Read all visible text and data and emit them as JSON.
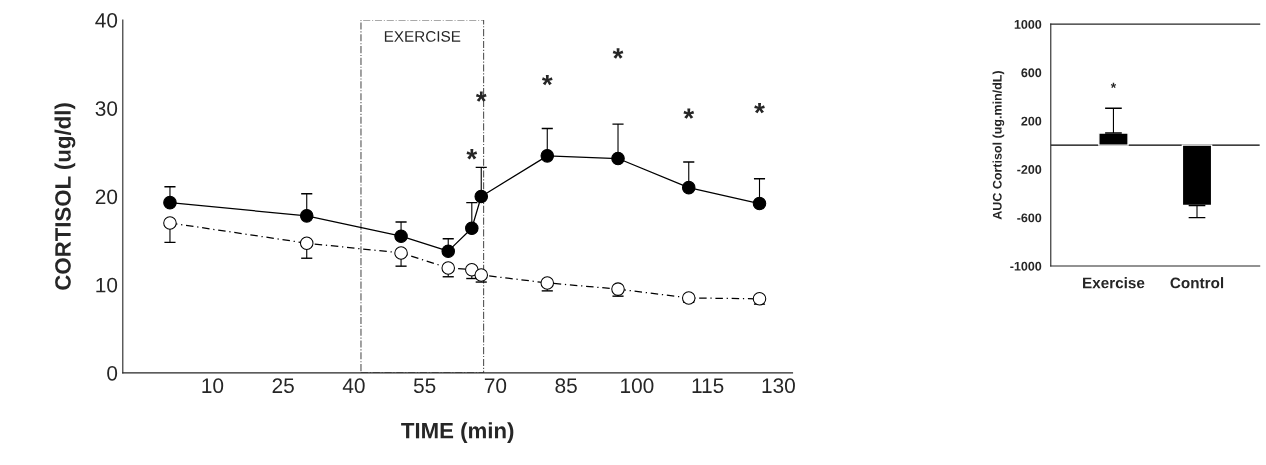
{
  "chart_data": [
    {
      "type": "line",
      "xlabel": "TIME (min)",
      "ylabel": "CORTISOL (ug/dl)",
      "xlim": [
        -9,
        133
      ],
      "ylim": [
        0,
        40
      ],
      "xticks": [
        10,
        25,
        40,
        55,
        70,
        85,
        100,
        115,
        130
      ],
      "yticks": [
        0,
        10,
        20,
        30,
        40
      ],
      "grid": false,
      "marker": "circle",
      "series": [
        {
          "color": "#000000",
          "line_style": "solid",
          "x": [
            1,
            30,
            50,
            60,
            65,
            67,
            81,
            96,
            111,
            126
          ],
          "values": [
            19.3,
            17.8,
            15.5,
            13.8,
            16.4,
            20.0,
            24.6,
            24.3,
            21.0,
            19.2
          ],
          "errors": [
            [
              19.3,
              21.1
            ],
            [
              17.8,
              20.3
            ],
            [
              15.5,
              17.1
            ],
            [
              13.8,
              15.2
            ],
            [
              16.4,
              19.3
            ],
            [
              20.0,
              23.3
            ],
            [
              24.6,
              27.7
            ],
            [
              24.3,
              28.2
            ],
            [
              21.0,
              23.9
            ],
            [
              19.2,
              22.0
            ]
          ]
        },
        {
          "color": "#000000",
          "line_style": "dashed",
          "x": [
            1,
            30,
            50,
            60,
            65,
            67,
            81,
            96,
            111,
            126
          ],
          "values": [
            17.0,
            14.7,
            13.6,
            11.9,
            11.7,
            11.1,
            10.2,
            9.5,
            8.5,
            8.4
          ],
          "errors": [
            [
              14.8,
              17.0
            ],
            [
              13.0,
              14.7
            ],
            [
              12.1,
              13.6
            ],
            [
              10.9,
              11.9
            ],
            [
              10.7,
              11.7
            ],
            [
              10.3,
              11.1
            ],
            [
              9.3,
              10.2
            ],
            [
              8.7,
              9.5
            ],
            [
              8.0,
              8.5
            ],
            [
              7.8,
              8.4
            ]
          ]
        }
      ],
      "bands": [
        {
          "axis": "x",
          "from": 41.5,
          "to": 67.5,
          "label": "EXERCISE",
          "color": "#ffffff"
        }
      ],
      "annotations": [
        "*",
        "*",
        "*",
        "*",
        "*",
        "*"
      ]
    },
    {
      "type": "bar",
      "ylabel": "AUC Cortisol (ug.min/dL)",
      "categories": [
        "Exercise",
        "Control"
      ],
      "values": [
        100,
        -500
      ],
      "color": "#000000",
      "errors": [
        [
          100,
          305
        ],
        [
          -600,
          -500
        ]
      ],
      "ylim": [
        -1000,
        1000
      ],
      "yticks": [
        -1000,
        -600,
        -200,
        200,
        600,
        1000
      ],
      "grid": false,
      "ref_lines": [
        {
          "axis": "y",
          "value": 0,
          "label": null,
          "color": "#000000"
        }
      ],
      "annotations": [
        "*"
      ]
    }
  ]
}
